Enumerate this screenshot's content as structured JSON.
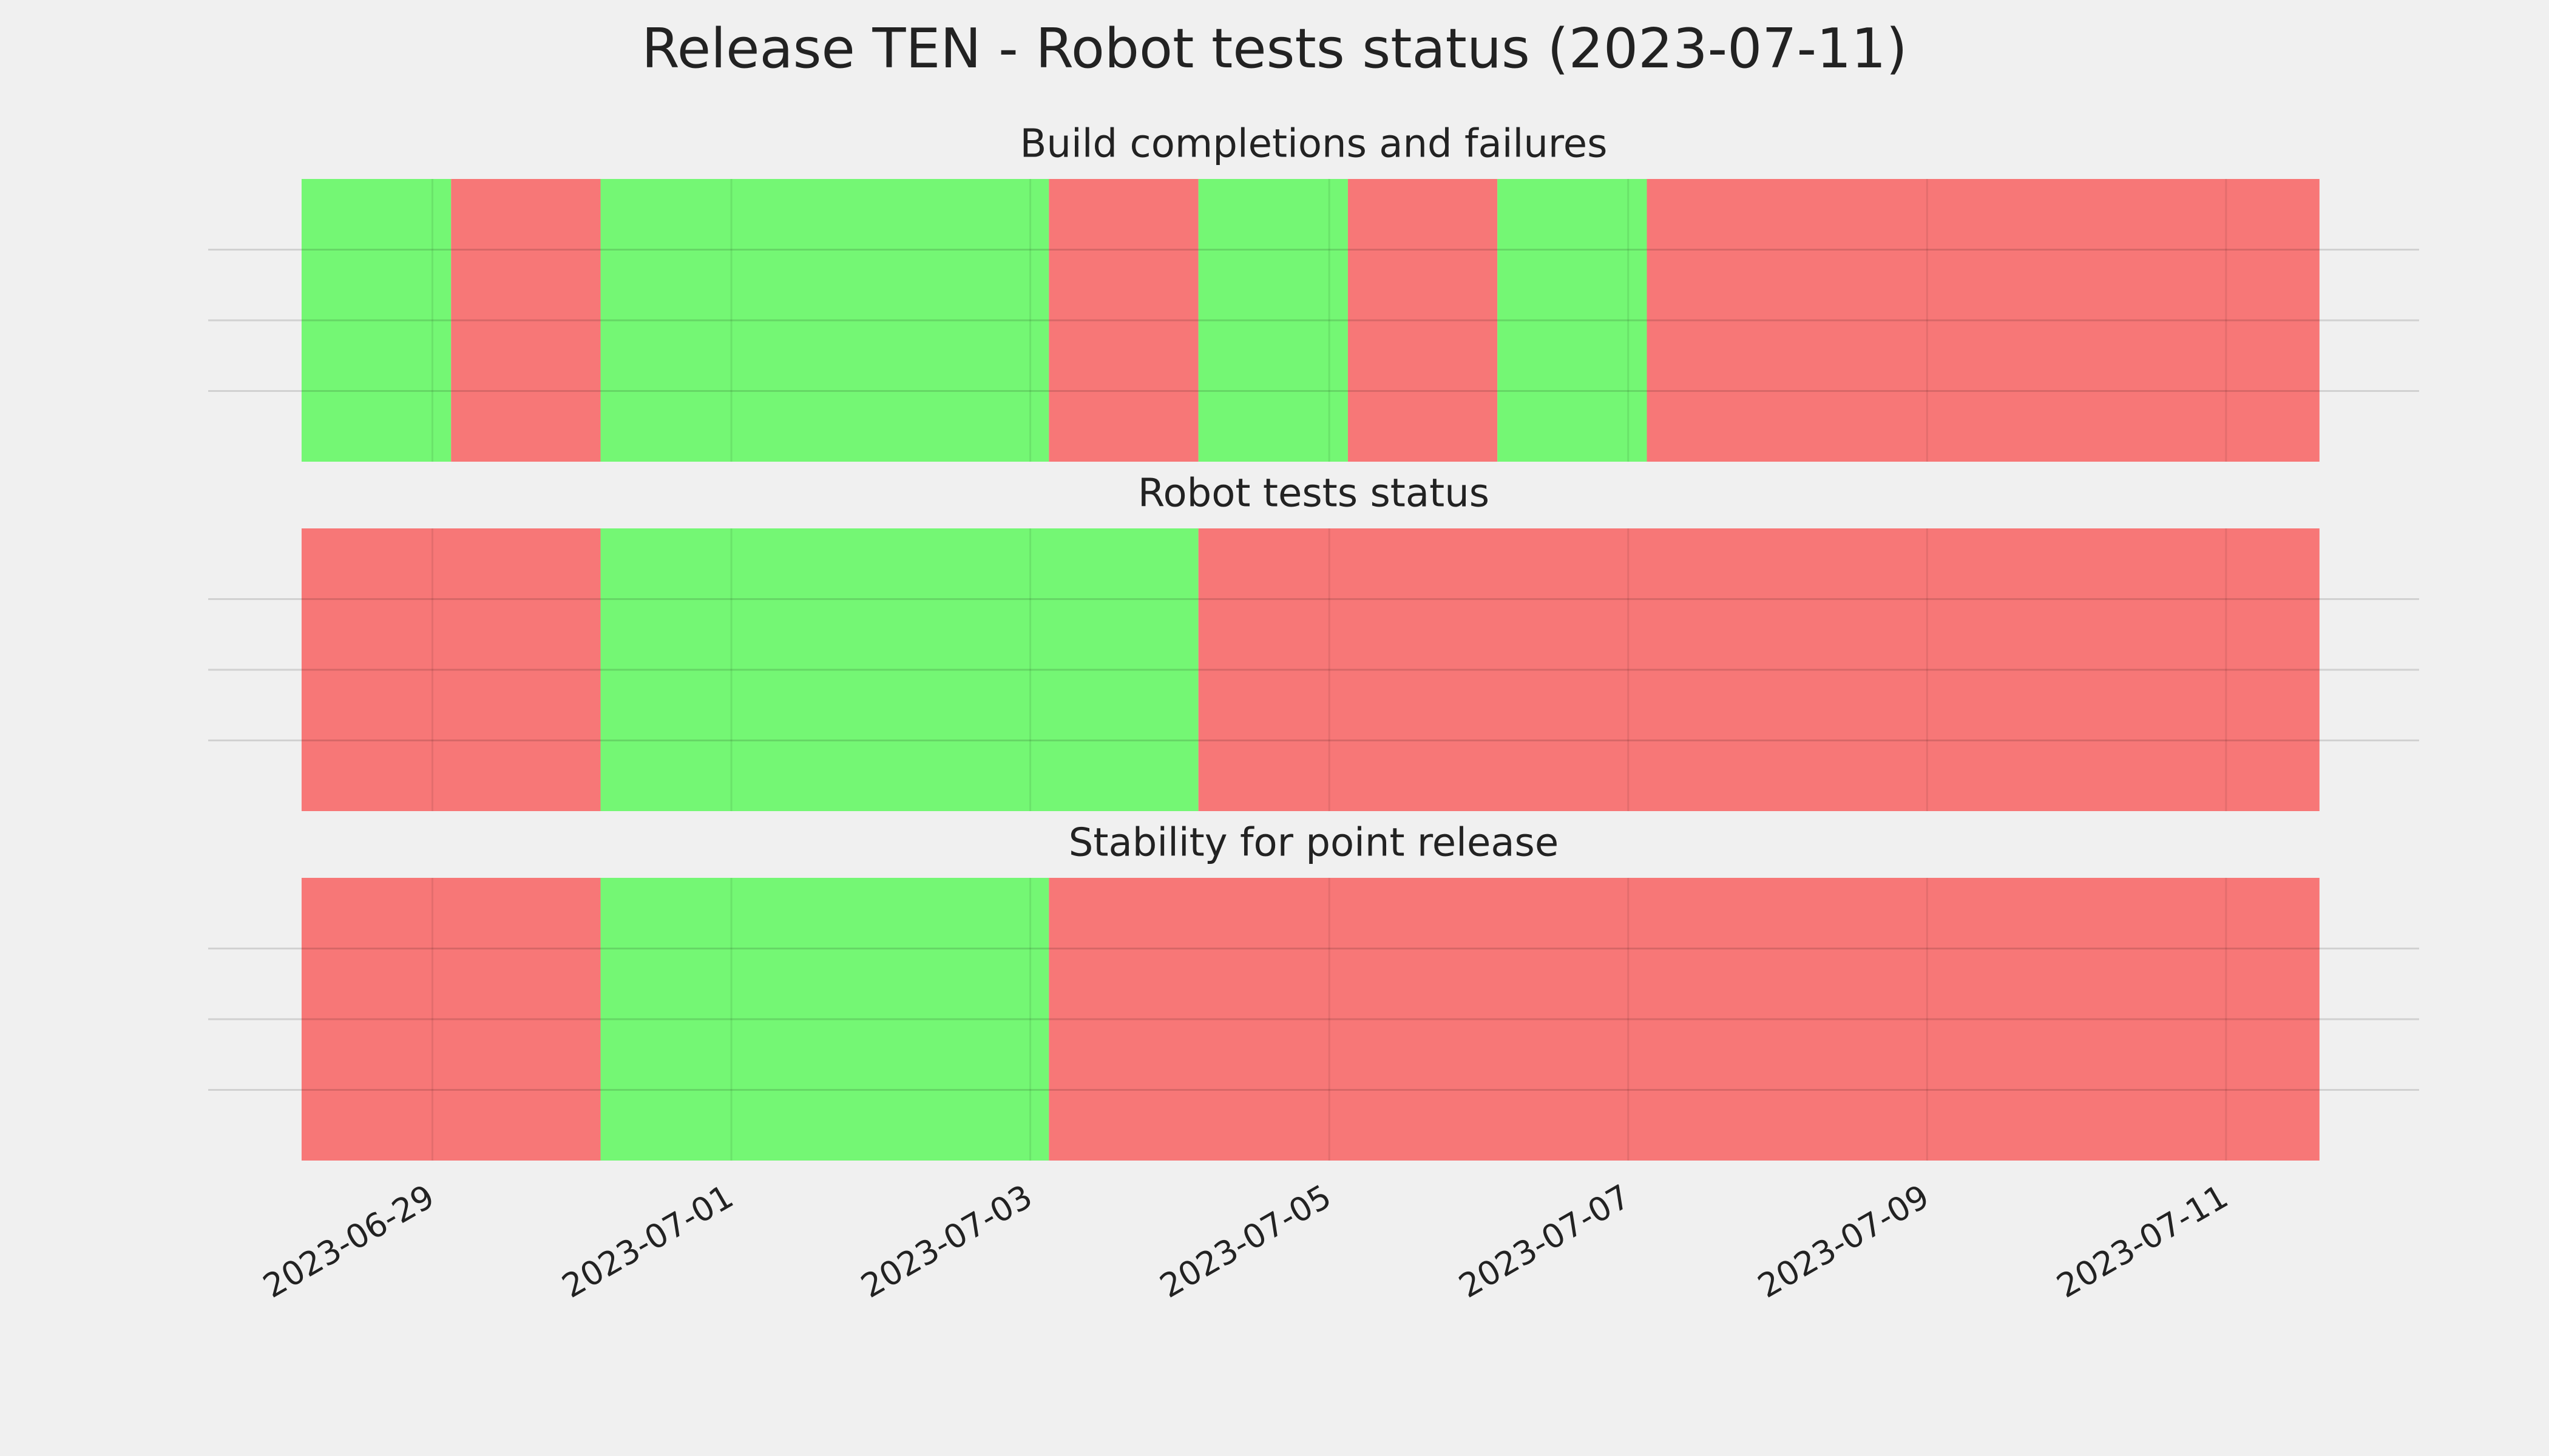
{
  "title": "Release TEN - Robot tests status (2023-07-11)",
  "chart_data": [
    {
      "type": "timeline",
      "title": "Build completions and failures",
      "x": [
        "2023-06-28T03:00",
        "2023-06-29T03:00",
        "2023-06-30T03:00",
        "2023-07-03T03:00",
        "2023-07-04T03:00",
        "2023-07-05T03:00",
        "2023-07-06T03:00",
        "2023-07-07T03:00",
        "2023-07-11T15:00"
      ],
      "colors": [
        "#74f774",
        "#f77777",
        "#74f774",
        "#f77777",
        "#74f774",
        "#f77777",
        "#74f774",
        "#f77777"
      ],
      "xlim": [
        "2023-06-27T12:00",
        "2023-07-12T07:00"
      ],
      "ylim": [
        0,
        1
      ],
      "yticks": [
        {
          "value": 0.25,
          "label": null
        },
        {
          "value": 0.5,
          "label": null
        },
        {
          "value": 0.75,
          "label": null
        }
      ],
      "grid": true
    },
    {
      "type": "timeline",
      "title": "Robot tests status",
      "x": [
        "2023-06-28T03:00",
        "2023-06-30T03:00",
        "2023-07-04T03:00",
        "2023-07-11T15:00"
      ],
      "colors": [
        "#f77777",
        "#74f774",
        "#f77777"
      ],
      "xlim": [
        "2023-06-27T12:00",
        "2023-07-12T07:00"
      ],
      "ylim": [
        0,
        1
      ],
      "yticks": [
        {
          "value": 0.25,
          "label": null
        },
        {
          "value": 0.5,
          "label": null
        },
        {
          "value": 0.75,
          "label": null
        }
      ],
      "grid": true
    },
    {
      "type": "timeline",
      "title": "Stability for point release",
      "x": [
        "2023-06-28T03:00",
        "2023-06-30T03:00",
        "2023-07-03T03:00",
        "2023-07-11T15:00"
      ],
      "colors": [
        "#f77777",
        "#74f774",
        "#f77777"
      ],
      "xlim": [
        "2023-06-27T12:00",
        "2023-07-12T07:00"
      ],
      "ylim": [
        0,
        1
      ],
      "yticks": [
        {
          "value": 0.25,
          "label": null
        },
        {
          "value": 0.5,
          "label": null
        },
        {
          "value": 0.75,
          "label": null
        }
      ],
      "xticks": [
        "2023-06-29",
        "2023-07-01",
        "2023-07-03",
        "2023-07-05",
        "2023-07-07",
        "2023-07-09",
        "2023-07-11"
      ],
      "grid": true
    }
  ]
}
